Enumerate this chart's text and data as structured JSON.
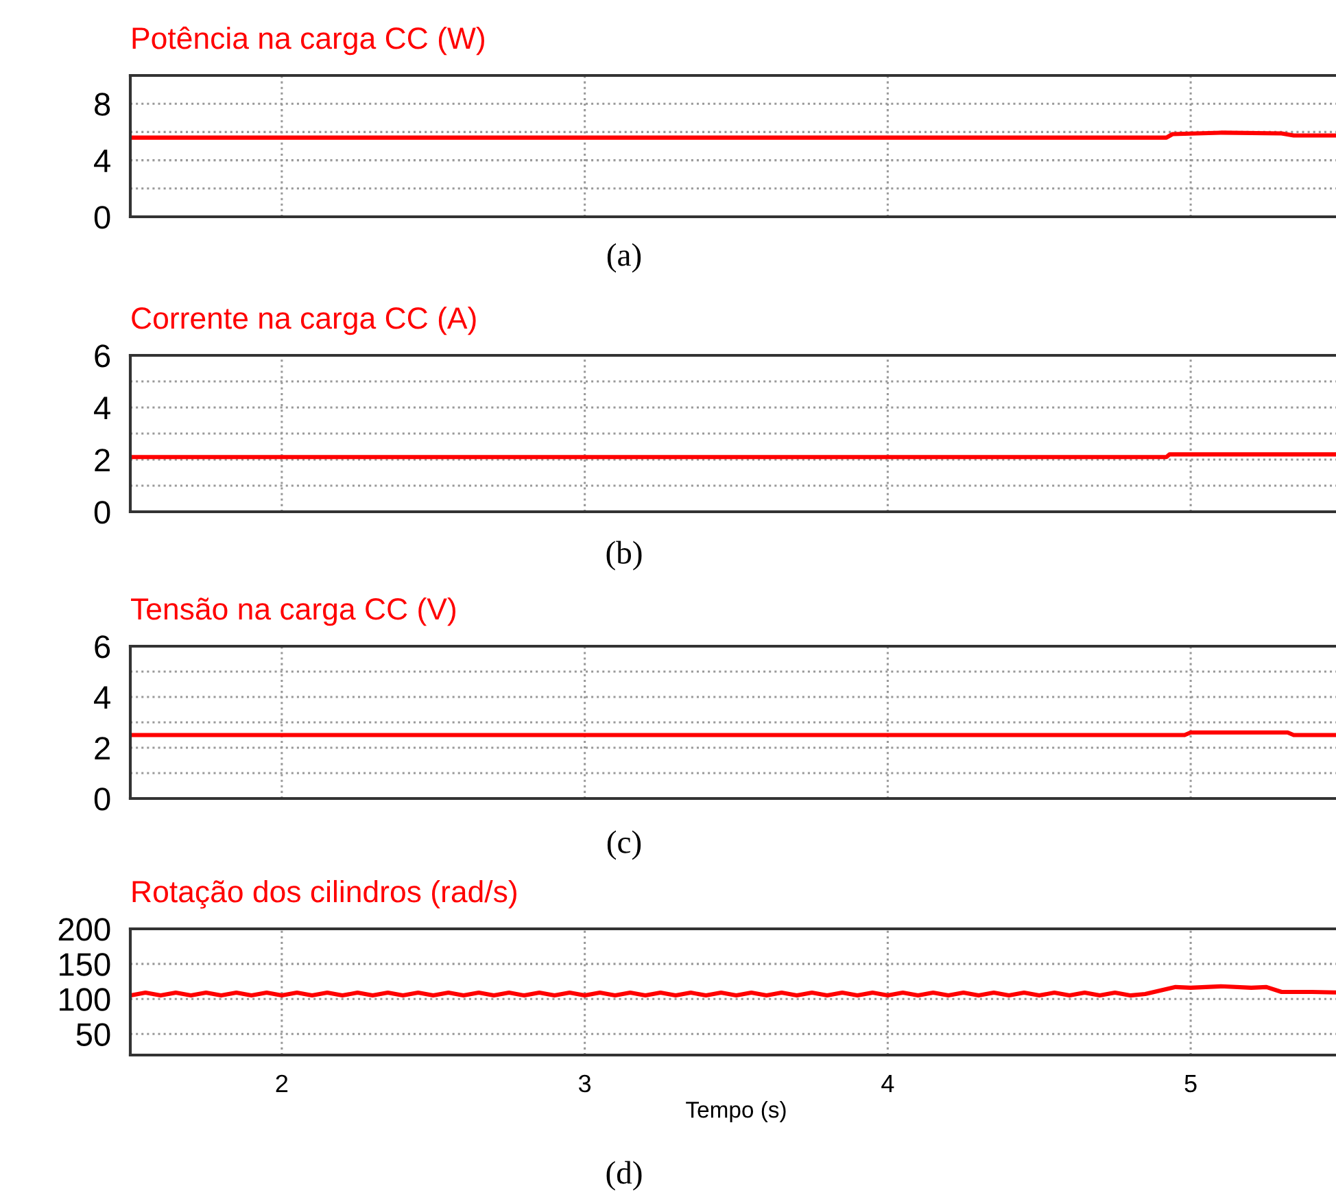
{
  "chart_data": [
    {
      "type": "line",
      "title": "Potência na carga CC (W)",
      "annotations": [
        "(a)"
      ],
      "x": [
        1.5,
        4.92,
        4.94,
        5.1,
        5.3,
        5.34,
        5.5
      ],
      "series": [
        {
          "color": "#ff0000",
          "values": [
            5.6,
            5.6,
            5.85,
            5.95,
            5.9,
            5.75,
            5.75
          ]
        }
      ],
      "xlim": [
        1.5,
        5.5
      ],
      "xticks": [
        2,
        3,
        4,
        5
      ],
      "ylim": [
        0,
        10
      ],
      "yticks": [
        0,
        {
          "value": 2,
          "label": null
        },
        4,
        {
          "value": 6,
          "label": null
        },
        8
      ],
      "grid": true,
      "tick_labels": "y",
      "line_style": "solid"
    },
    {
      "type": "line",
      "title": "Corrente na carga CC (A)",
      "annotations": [
        "(b)"
      ],
      "x": [
        1.5,
        4.92,
        4.93,
        5.5
      ],
      "series": [
        {
          "color": "#ff0000",
          "values": [
            2.1,
            2.1,
            2.2,
            2.2
          ]
        }
      ],
      "xlim": [
        1.5,
        5.5
      ],
      "xticks": [
        2,
        3,
        4,
        5
      ],
      "ylim": [
        0,
        6
      ],
      "yticks": [
        0,
        {
          "value": 1,
          "label": null
        },
        2,
        {
          "value": 3,
          "label": null
        },
        4,
        {
          "value": 5,
          "label": null
        },
        6
      ],
      "grid": true,
      "tick_labels": "y",
      "line_style": "solid"
    },
    {
      "type": "line",
      "title": "Tensão na carga CC (V)",
      "annotations": [
        "(c)"
      ],
      "x": [
        1.5,
        4.98,
        5.0,
        5.32,
        5.34,
        5.5
      ],
      "series": [
        {
          "color": "#ff0000",
          "values": [
            2.5,
            2.5,
            2.6,
            2.6,
            2.5,
            2.5
          ]
        }
      ],
      "xlim": [
        1.5,
        5.5
      ],
      "xticks": [
        2,
        3,
        4,
        5
      ],
      "ylim": [
        0,
        6
      ],
      "yticks": [
        0,
        {
          "value": 1,
          "label": null
        },
        2,
        {
          "value": 3,
          "label": null
        },
        4,
        {
          "value": 5,
          "label": null
        },
        6
      ],
      "grid": true,
      "tick_labels": "y",
      "line_style": "solid"
    },
    {
      "type": "line",
      "title": "Rotação dos cilindros (rad/s)",
      "xlabel": "Tempo (s)",
      "annotations": [
        "(d)"
      ],
      "x": [
        1.5,
        1.55,
        1.6,
        1.65,
        1.7,
        1.75,
        1.8,
        1.85,
        1.9,
        1.95,
        2.0,
        2.05,
        2.1,
        2.15,
        2.2,
        2.25,
        2.3,
        2.35,
        2.4,
        2.45,
        2.5,
        2.55,
        2.6,
        2.65,
        2.7,
        2.75,
        2.8,
        2.85,
        2.9,
        2.95,
        3.0,
        3.05,
        3.1,
        3.15,
        3.2,
        3.25,
        3.3,
        3.35,
        3.4,
        3.45,
        3.5,
        3.55,
        3.6,
        3.65,
        3.7,
        3.75,
        3.8,
        3.85,
        3.9,
        3.95,
        4.0,
        4.05,
        4.1,
        4.15,
        4.2,
        4.25,
        4.3,
        4.35,
        4.4,
        4.45,
        4.5,
        4.55,
        4.6,
        4.65,
        4.7,
        4.75,
        4.8,
        4.85,
        4.95,
        5.0,
        5.1,
        5.2,
        5.25,
        5.3,
        5.4,
        5.5
      ],
      "series": [
        {
          "color": "#ff0000",
          "values": [
            105,
            109,
            105,
            109,
            105,
            109,
            105,
            109,
            105,
            109,
            105,
            109,
            105,
            109,
            105,
            109,
            105,
            109,
            105,
            109,
            105,
            109,
            105,
            109,
            105,
            109,
            105,
            109,
            105,
            109,
            105,
            109,
            105,
            109,
            105,
            109,
            105,
            109,
            105,
            109,
            105,
            109,
            105,
            109,
            105,
            109,
            105,
            109,
            105,
            109,
            105,
            109,
            105,
            109,
            105,
            109,
            105,
            109,
            105,
            109,
            105,
            109,
            105,
            109,
            105,
            109,
            105,
            107,
            117,
            116,
            118,
            116,
            117,
            110,
            110,
            109
          ]
        }
      ],
      "xlim": [
        1.5,
        5.5
      ],
      "xticks": [
        2,
        3,
        4,
        5
      ],
      "ylim": [
        20,
        200
      ],
      "yticks": [
        50,
        100,
        150,
        200
      ],
      "grid": true,
      "line_style": "solid"
    }
  ]
}
